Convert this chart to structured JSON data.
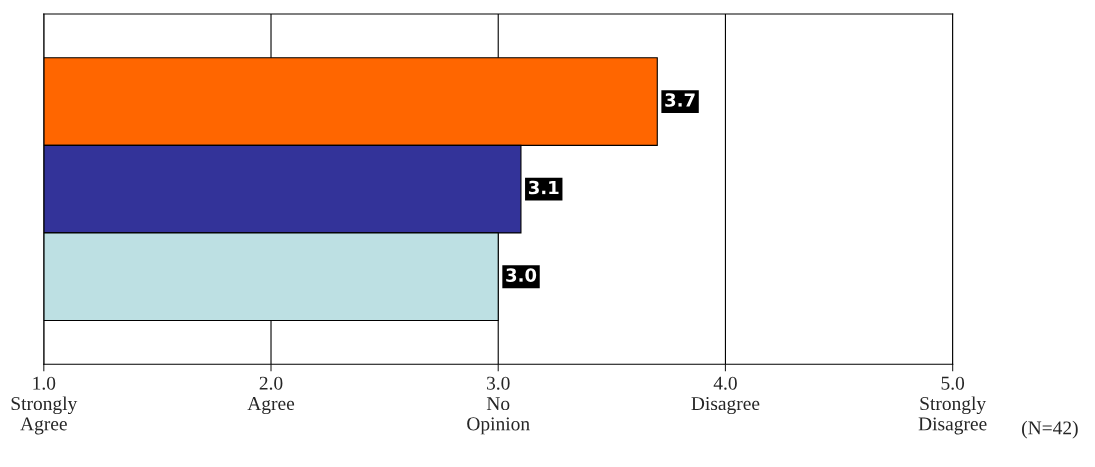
{
  "chart_data": {
    "type": "bar",
    "orientation": "horizontal",
    "categories": [
      null,
      null,
      null
    ],
    "values": [
      3.7,
      3.1,
      3.0
    ],
    "colors": [
      "#ff6600",
      "#333399",
      "#bde0e3"
    ],
    "value_labels": [
      "3.7",
      "3.1",
      "3.0"
    ],
    "xlim": [
      1,
      5
    ],
    "xticks": [
      {
        "value": 1,
        "label": "1.0\nStrongly\nAgree"
      },
      {
        "value": 2,
        "label": "2.0\nAgree"
      },
      {
        "value": 3,
        "label": "3.0\nNo\nOpinion"
      },
      {
        "value": 4,
        "label": "4.0\nDisagree"
      },
      {
        "value": 5,
        "label": "5.0\nStrongly\nDisagree"
      }
    ],
    "grid": "x",
    "annotations": [
      "(N=42)"
    ]
  }
}
